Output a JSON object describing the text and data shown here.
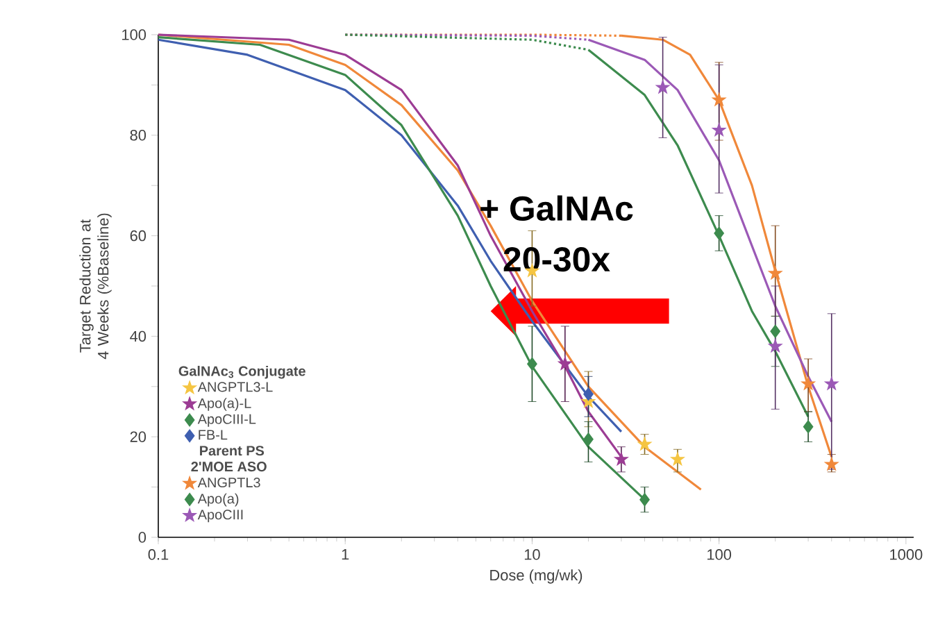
{
  "chart_data": {
    "type": "scatter",
    "xlabel": "Dose (mg/wk)",
    "ylabel": "Target Reduction at 4 Weeks (%Baseline)",
    "log": "x",
    "xlim": [
      0.1,
      1100
    ],
    "xticks": [
      0.1,
      1,
      10,
      100,
      1000
    ],
    "ylim": [
      0,
      100
    ],
    "yticks": [
      0,
      {
        "value": 10,
        "label": null
      },
      20,
      {
        "value": 30,
        "label": null
      },
      40,
      {
        "value": 50,
        "label": null
      },
      60,
      {
        "value": 70,
        "label": null
      },
      80,
      {
        "value": 90,
        "label": null
      },
      100
    ],
    "legend": "bottom left",
    "annotations": [
      "+ GalNAc",
      "20-30x",
      "GalNAc$_{3}$ Conjugate",
      "Parent PS",
      "2'MOE ASO"
    ],
    "series": [
      {
        "name": "ANGPTL3-L",
        "marker": "star",
        "color": "#f5c542",
        "x": [
          10,
          20,
          40,
          60
        ],
        "values": [
          53,
          27,
          18.5,
          15.5
        ],
        "errors": [
          [
            46,
            61
          ],
          [
            22,
            33
          ],
          [
            16.5,
            20.5
          ],
          [
            13,
            17.5
          ]
        ]
      },
      {
        "name": "Apo(a)-L",
        "marker": "star",
        "color": "#9c3c94",
        "x": [
          15,
          30
        ],
        "values": [
          34.5,
          15.5
        ],
        "errors": [
          [
            27,
            42
          ],
          [
            13,
            18
          ]
        ]
      },
      {
        "name": "ApoCIII-L",
        "marker": "diamond",
        "color": "#3d8b4e",
        "x": [
          10,
          20,
          40
        ],
        "values": [
          34.5,
          19.5,
          7.5
        ],
        "errors": [
          [
            27,
            42
          ],
          [
            15,
            23
          ],
          [
            5,
            10
          ]
        ]
      },
      {
        "name": "FB-L",
        "marker": "diamond",
        "color": "#3f5fb0",
        "x": [
          20
        ],
        "values": [
          28.5
        ],
        "errors": [
          [
            24,
            32
          ]
        ]
      },
      {
        "name": "ANGPTL3",
        "marker": "star",
        "color": "#f0883a",
        "x": [
          100,
          200,
          300,
          400
        ],
        "values": [
          87,
          52.5,
          30.5,
          14.5
        ],
        "errors": [
          [
            79,
            94.5
          ],
          [
            44,
            62
          ],
          [
            25,
            35.5
          ],
          [
            13,
            16.5
          ]
        ]
      },
      {
        "name": "Apo(a)",
        "marker": "diamond",
        "color": "#3d8b4e",
        "x": [
          100,
          200,
          300
        ],
        "values": [
          60.5,
          41,
          22
        ],
        "errors": [
          [
            57,
            64
          ],
          [
            34,
            44
          ],
          [
            19,
            25
          ]
        ]
      },
      {
        "name": "ApoCIII",
        "marker": "star",
        "color": "#9b59b6",
        "x": [
          50,
          100,
          200,
          400
        ],
        "values": [
          89.5,
          81,
          38,
          30.5
        ],
        "errors": [
          [
            79.5,
            99.5
          ],
          [
            68.5,
            94
          ],
          [
            25.5,
            50
          ],
          [
            13.5,
            44.5
          ]
        ]
      },
      {
        "type": "line",
        "color": "#3f5fb0",
        "line_style": "solid",
        "x": [
          0.1,
          0.3,
          1,
          2,
          4,
          6,
          10,
          20,
          30
        ],
        "values": [
          99,
          96,
          89,
          80,
          66,
          55,
          43,
          28,
          21
        ]
      },
      {
        "type": "line",
        "color": "#3d8b4e",
        "line_style": "solid",
        "x": [
          0.1,
          0.35,
          1,
          2,
          4,
          6,
          10,
          20,
          40
        ],
        "values": [
          99.5,
          98,
          92,
          82,
          64,
          50,
          34,
          18,
          7.5
        ]
      },
      {
        "type": "line",
        "color": "#f0883a",
        "line_style": "solid",
        "x": [
          0.1,
          0.5,
          1,
          2,
          4,
          6,
          10,
          20,
          40,
          80
        ],
        "values": [
          100,
          98,
          94,
          86,
          73,
          62,
          47,
          30,
          18,
          9.5
        ]
      },
      {
        "type": "line",
        "color": "#9c3c94",
        "line_style": "solid",
        "x": [
          0.1,
          0.5,
          1,
          2,
          4,
          6,
          10,
          15,
          20,
          30
        ],
        "values": [
          100,
          99,
          96,
          89,
          74,
          60,
          45,
          34,
          25,
          16
        ]
      },
      {
        "type": "line",
        "color": "#f0883a",
        "line_style": "dotted",
        "x": [
          1,
          10,
          30
        ],
        "values": [
          100,
          100,
          99.8
        ]
      },
      {
        "type": "line",
        "color": "#f0883a",
        "line_style": "solid",
        "x": [
          30,
          50,
          70,
          100,
          150,
          200,
          300,
          400
        ],
        "values": [
          99.8,
          99,
          96,
          87,
          70,
          53,
          30,
          16
        ]
      },
      {
        "type": "line",
        "color": "#9b59b6",
        "line_style": "dotted",
        "x": [
          1,
          10,
          20
        ],
        "values": [
          100,
          99.8,
          99
        ]
      },
      {
        "type": "line",
        "color": "#9b59b6",
        "line_style": "solid",
        "x": [
          20,
          40,
          60,
          100,
          150,
          200,
          300,
          400
        ],
        "values": [
          99,
          95,
          89,
          75,
          58,
          46,
          32,
          23
        ]
      },
      {
        "type": "line",
        "color": "#3d8b4e",
        "line_style": "dotted",
        "x": [
          1,
          10,
          20
        ],
        "values": [
          100,
          99,
          97
        ]
      },
      {
        "type": "line",
        "color": "#3d8b4e",
        "line_style": "solid",
        "x": [
          20,
          40,
          60,
          100,
          150,
          200,
          300
        ],
        "values": [
          97,
          88,
          78,
          60,
          45,
          37,
          24
        ]
      }
    ]
  }
}
